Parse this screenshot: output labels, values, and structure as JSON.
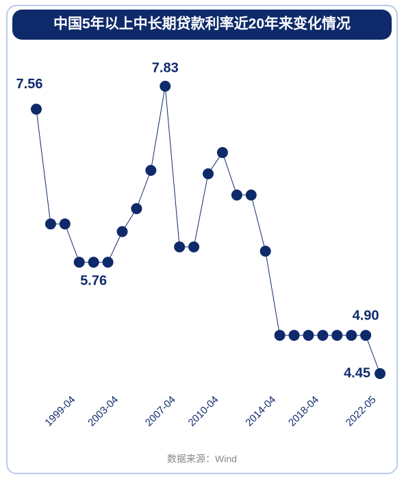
{
  "chart_data": {
    "type": "line",
    "title": "中国5年以上中长期贷款利率近20年来变化情况",
    "source": "数据来源：Wind",
    "categories": [
      null,
      null,
      null,
      "1999-04",
      null,
      null,
      "2003-04",
      null,
      null,
      null,
      "2007-04",
      null,
      null,
      "2010-04",
      null,
      null,
      null,
      "2014-04",
      null,
      null,
      "2018-04",
      null,
      null,
      null,
      "2022-05"
    ],
    "values": [
      7.56,
      6.21,
      6.21,
      5.76,
      5.76,
      5.76,
      6.12,
      6.39,
      6.84,
      7.83,
      5.94,
      5.94,
      6.8,
      7.05,
      6.55,
      6.55,
      5.89,
      4.9,
      4.9,
      4.9,
      4.9,
      4.9,
      4.9,
      4.9,
      4.45
    ],
    "value_labels": [
      "7.56",
      null,
      null,
      null,
      "5.76",
      null,
      null,
      null,
      null,
      "7.83",
      null,
      null,
      null,
      null,
      null,
      null,
      null,
      null,
      null,
      null,
      null,
      null,
      null,
      "4.90",
      "4.45"
    ],
    "color": "#0f2a6b"
  }
}
